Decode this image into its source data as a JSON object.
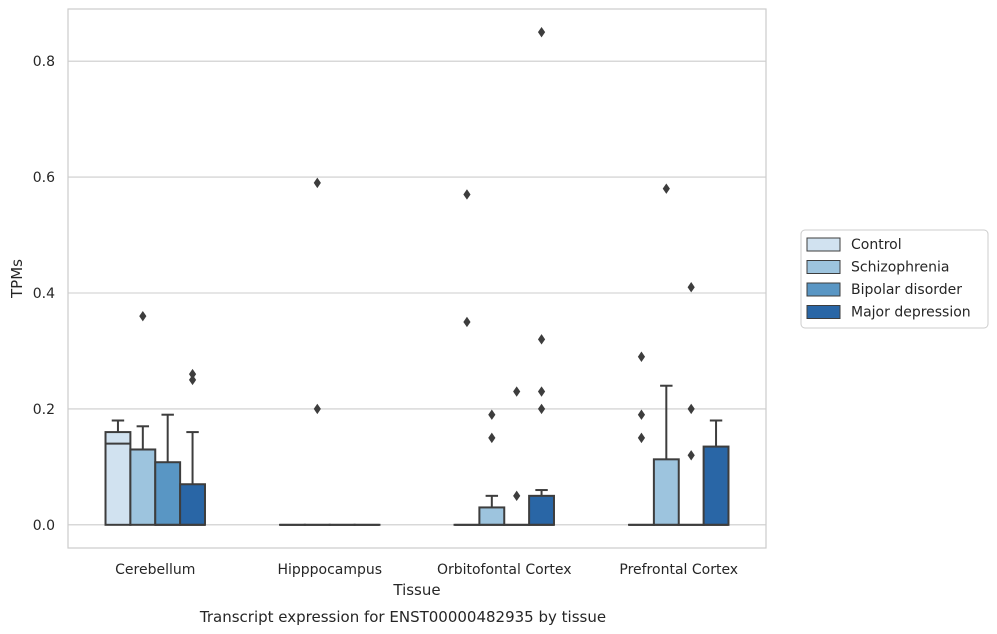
{
  "chart_data": {
    "type": "box",
    "title": "",
    "caption": "Transcript expression for ENST00000482935 by tissue",
    "xlabel": "Tissue",
    "ylabel": "TPMs",
    "ylim": [
      -0.04,
      0.89
    ],
    "yticks": [
      0.0,
      0.2,
      0.4,
      0.6,
      0.8
    ],
    "ytick_labels": [
      "0.0",
      "0.2",
      "0.4",
      "0.6",
      "0.8"
    ],
    "grid": true,
    "legend_position": "right",
    "categories": [
      "Cerebellum",
      "Hipppocampus",
      "Orbitofontal Cortex",
      "Prefrontal Cortex"
    ],
    "series": [
      {
        "name": "Control",
        "color": "#d1e2f0",
        "boxes": [
          {
            "q1": 0.0,
            "median": 0.14,
            "q3": 0.16,
            "whisker_low": 0.0,
            "whisker_high": 0.18,
            "outliers": []
          },
          {
            "q1": 0.0,
            "median": 0.0,
            "q3": 0.0,
            "whisker_low": 0.0,
            "whisker_high": 0.0,
            "outliers": []
          },
          {
            "q1": 0.0,
            "median": 0.0,
            "q3": 0.0,
            "whisker_low": 0.0,
            "whisker_high": 0.0,
            "outliers": [
              0.57,
              0.35
            ]
          },
          {
            "q1": 0.0,
            "median": 0.0,
            "q3": 0.0,
            "whisker_low": 0.0,
            "whisker_high": 0.0,
            "outliers": [
              0.29,
              0.19,
              0.15
            ]
          }
        ]
      },
      {
        "name": "Schizophrenia",
        "color": "#9dc4de",
        "boxes": [
          {
            "q1": 0.0,
            "median": 0.13,
            "q3": 0.13,
            "whisker_low": 0.0,
            "whisker_high": 0.17,
            "outliers": [
              0.36
            ]
          },
          {
            "q1": 0.0,
            "median": 0.0,
            "q3": 0.0,
            "whisker_low": 0.0,
            "whisker_high": 0.0,
            "outliers": [
              0.59,
              0.2
            ]
          },
          {
            "q1": 0.0,
            "median": 0.0,
            "q3": 0.03,
            "whisker_low": 0.0,
            "whisker_high": 0.05,
            "outliers": [
              0.19,
              0.15
            ]
          },
          {
            "q1": 0.0,
            "median": 0.0,
            "q3": 0.113,
            "whisker_low": 0.0,
            "whisker_high": 0.24,
            "outliers": [
              0.58
            ]
          }
        ]
      },
      {
        "name": "Bipolar disorder",
        "color": "#5996c4",
        "boxes": [
          {
            "q1": 0.0,
            "median": 0.0,
            "q3": 0.108,
            "whisker_low": 0.0,
            "whisker_high": 0.19,
            "outliers": []
          },
          {
            "q1": 0.0,
            "median": 0.0,
            "q3": 0.0,
            "whisker_low": 0.0,
            "whisker_high": 0.0,
            "outliers": []
          },
          {
            "q1": 0.0,
            "median": 0.0,
            "q3": 0.0,
            "whisker_low": 0.0,
            "whisker_high": 0.0,
            "outliers": [
              0.23,
              0.05
            ]
          },
          {
            "q1": 0.0,
            "median": 0.0,
            "q3": 0.0,
            "whisker_low": 0.0,
            "whisker_high": 0.0,
            "outliers": [
              0.41,
              0.2,
              0.12
            ]
          }
        ]
      },
      {
        "name": "Major depression",
        "color": "#2966a6",
        "boxes": [
          {
            "q1": 0.0,
            "median": 0.0,
            "q3": 0.07,
            "whisker_low": 0.0,
            "whisker_high": 0.16,
            "outliers": [
              0.26,
              0.25
            ]
          },
          {
            "q1": 0.0,
            "median": 0.0,
            "q3": 0.0,
            "whisker_low": 0.0,
            "whisker_high": 0.0,
            "outliers": []
          },
          {
            "q1": 0.0,
            "median": 0.0,
            "q3": 0.05,
            "whisker_low": 0.0,
            "whisker_high": 0.06,
            "outliers": [
              0.85,
              0.32,
              0.23,
              0.2
            ]
          },
          {
            "q1": 0.0,
            "median": 0.0,
            "q3": 0.135,
            "whisker_low": 0.0,
            "whisker_high": 0.18,
            "outliers": []
          }
        ]
      }
    ]
  }
}
